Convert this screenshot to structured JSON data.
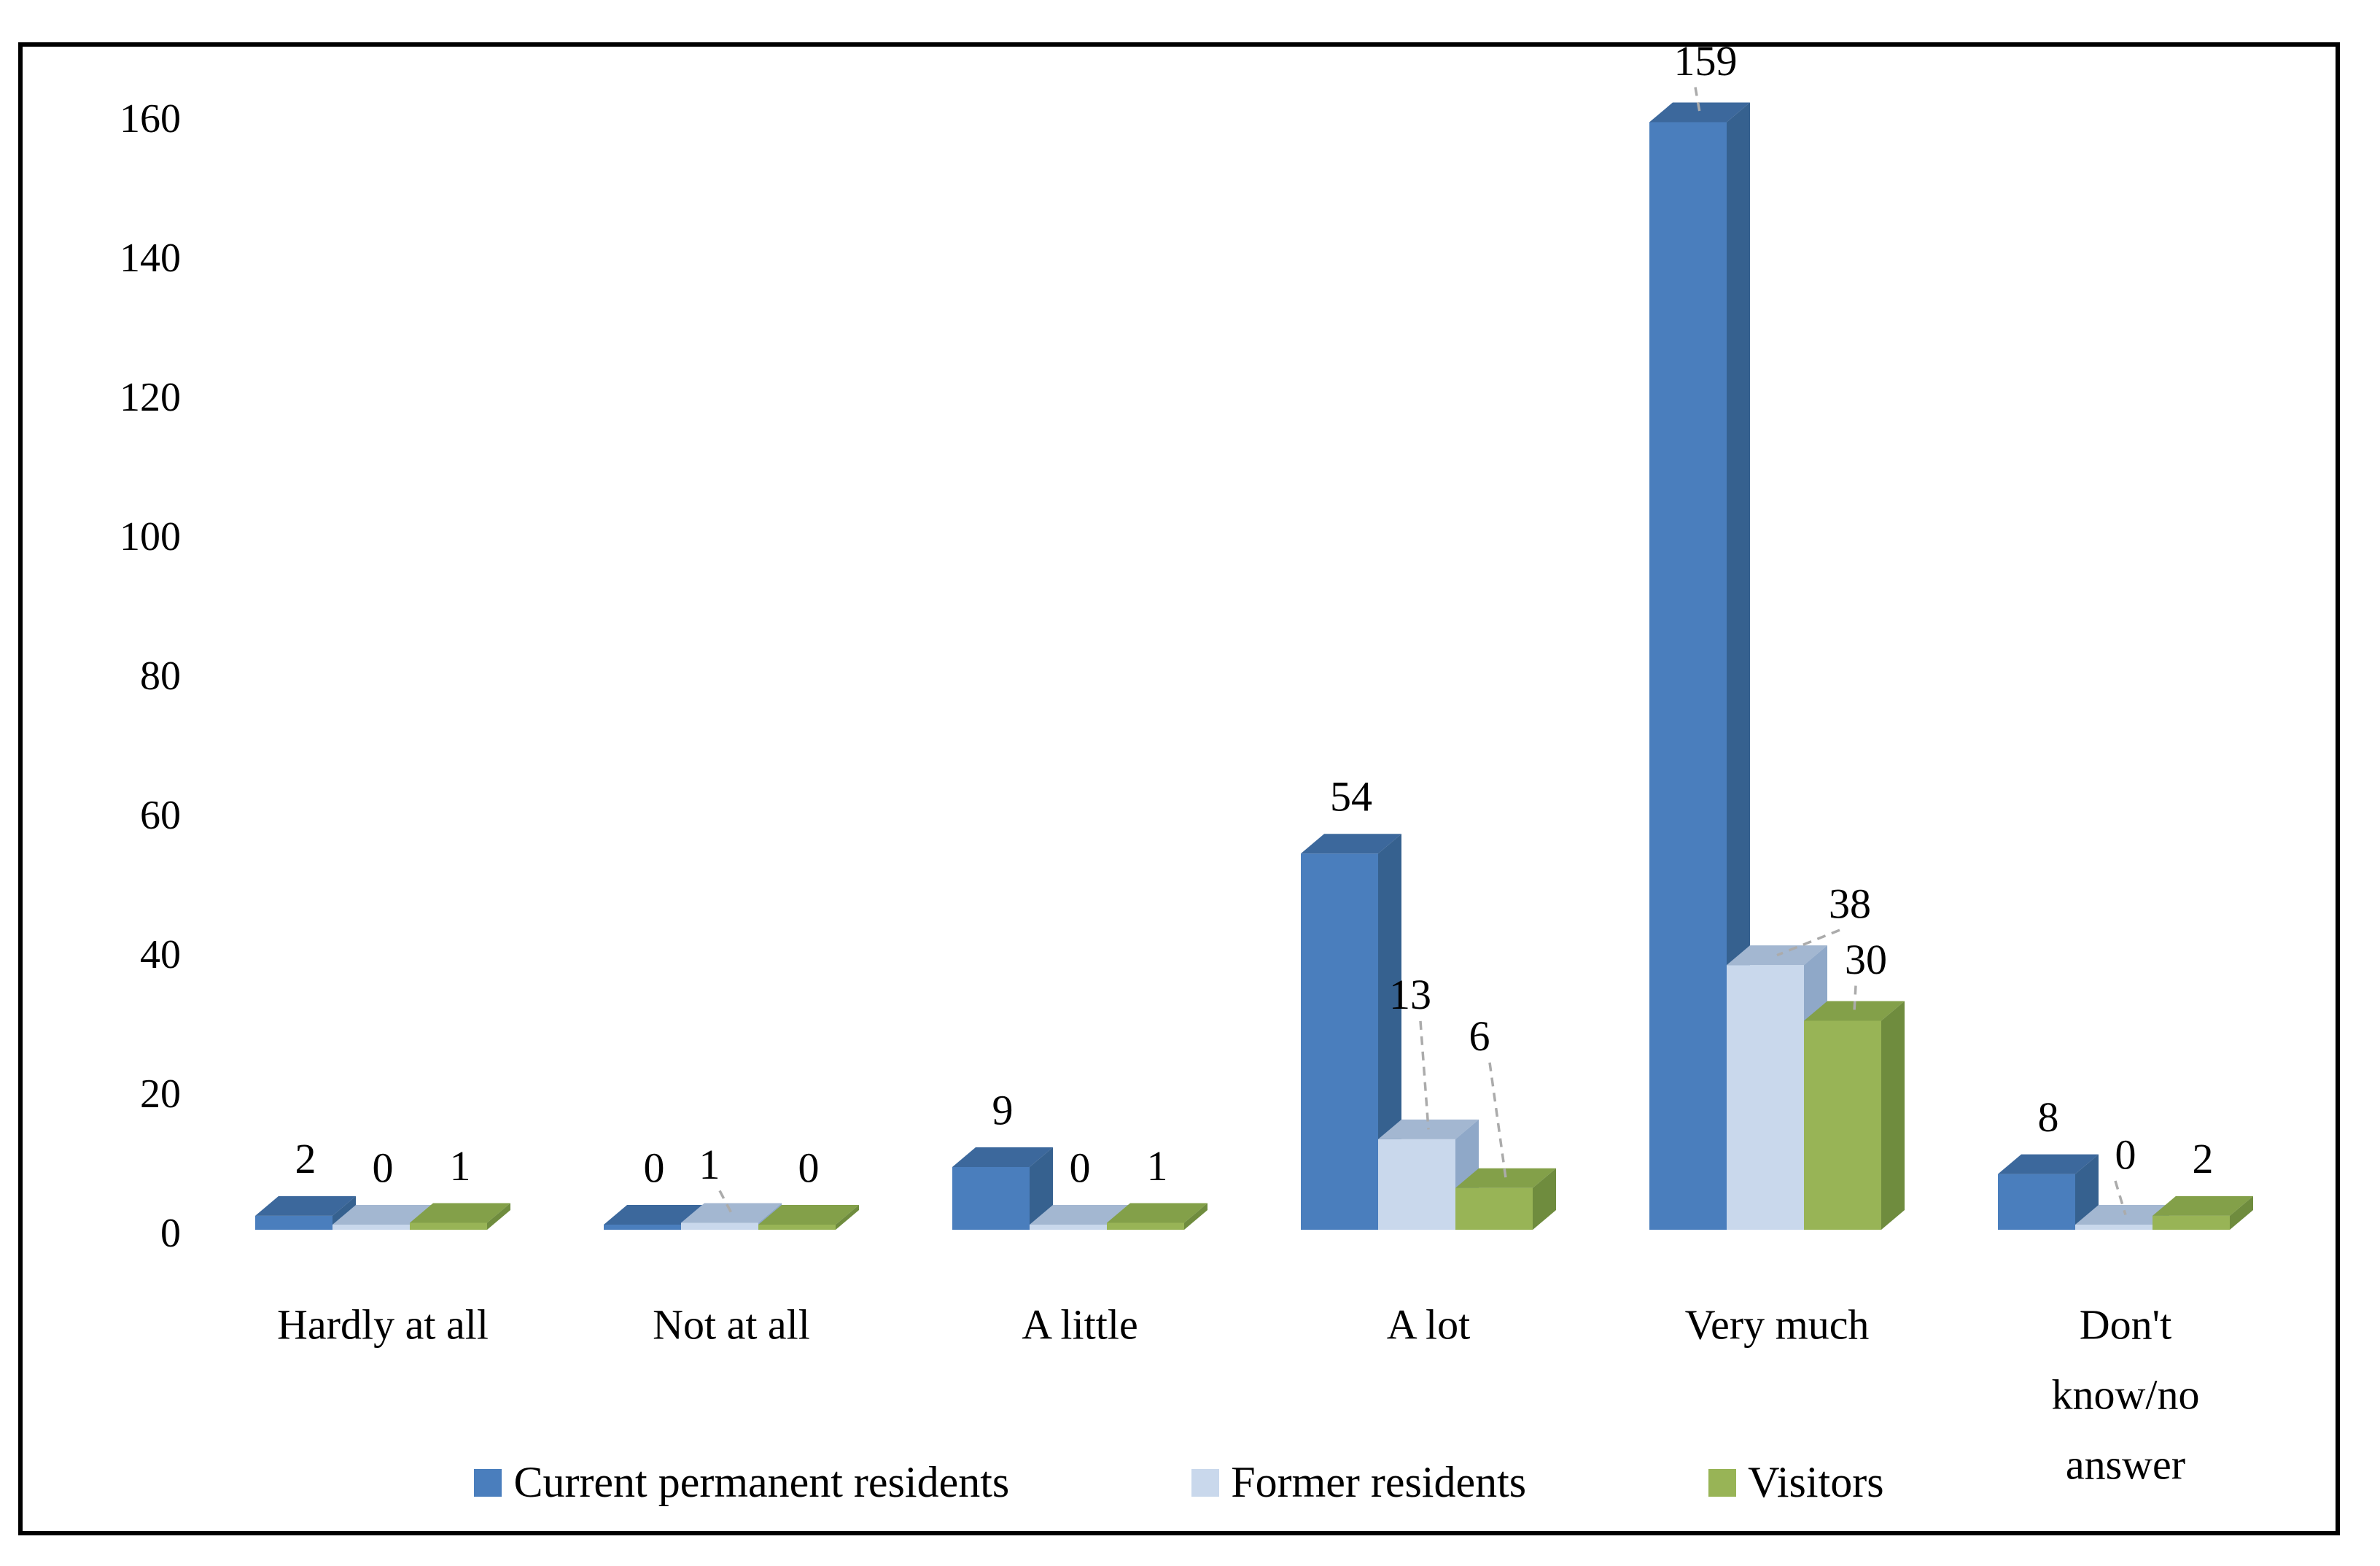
{
  "figure": {
    "background_color": "#ffffff",
    "border_color": "#000000"
  },
  "chart_data": {
    "type": "bar",
    "style": "3d-clustered",
    "title": "",
    "xlabel": "",
    "ylabel": "",
    "categories": [
      {
        "label": "Hardly at all",
        "lines": [
          "Hardly at all"
        ]
      },
      {
        "label": "Not at all",
        "lines": [
          "Not at all"
        ]
      },
      {
        "label": "A little",
        "lines": [
          "A little"
        ]
      },
      {
        "label": "A lot",
        "lines": [
          "A lot"
        ]
      },
      {
        "label": "Very much",
        "lines": [
          "Very much"
        ]
      },
      {
        "label": "Don't know/no answer",
        "lines": [
          "Don't",
          "know/no",
          "answer"
        ]
      }
    ],
    "series": [
      {
        "name": "Current permanent residents",
        "values": [
          2,
          0,
          9,
          54,
          159,
          8
        ],
        "color_front": "#4A7EBD",
        "color_top": "#3C689C",
        "color_side": "#36618F"
      },
      {
        "name": "Former residents",
        "values": [
          0,
          1,
          0,
          13,
          38,
          0
        ],
        "color_front": "#C9D8EC",
        "color_top": "#A3B7D1",
        "color_side": "#8FA8C8"
      },
      {
        "name": "Visitors",
        "values": [
          1,
          0,
          1,
          6,
          30,
          2
        ],
        "color_front": "#98B456",
        "color_top": "#83A049",
        "color_side": "#6F8C3E"
      }
    ],
    "ylim": [
      0,
      160
    ],
    "ytick_step": 20,
    "y_ticks": [
      "0",
      "20",
      "40",
      "60",
      "80",
      "100",
      "120",
      "140",
      "160"
    ],
    "grid": false,
    "data_labels": true,
    "axis_text_color": "#000000",
    "label_text_color": "#000000",
    "leader_line_color": "#ABABAB",
    "legend_position": "bottom",
    "label_adjustments": {
      "4-0": {
        "dx": 8,
        "dy": -6,
        "leader": true
      },
      "3-1": {
        "dx": -25,
        "dy": -120,
        "leader": true
      },
      "3-2": {
        "dx": -36,
        "dy": -130,
        "leader": true
      },
      "4-1": {
        "dx": 100,
        "dy": -6,
        "leader": true
      },
      "4-2": {
        "dx": 16,
        "dy": -6,
        "leader": true
      },
      "1-1": {
        "dx": -30,
        "dy": -2,
        "leader": true
      },
      "5-1": {
        "dx": 0,
        "dy": -18,
        "leader": true
      }
    }
  }
}
